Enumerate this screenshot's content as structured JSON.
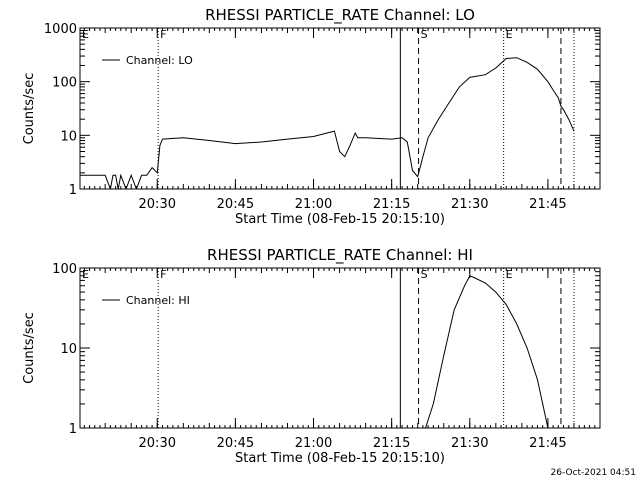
{
  "footer_timestamp": "26-Oct-2021 04:51",
  "chart_data": [
    {
      "type": "line",
      "title": "RHESSI PARTICLE_RATE Channel: LO",
      "xlabel": "Start Time (08-Feb-15 20:15:10)",
      "ylabel": "Counts/sec",
      "yscale": "log",
      "xlim": [
        "20:15:10",
        "21:55:00"
      ],
      "ylim": [
        1,
        1000
      ],
      "xticks": [
        "20:30",
        "20:45",
        "21:00",
        "21:15",
        "21:30",
        "21:45"
      ],
      "yticks": [
        "1",
        "10",
        "100",
        "1000"
      ],
      "legend": "top-left",
      "markers": [
        {
          "label": "E",
          "time": "20:15:10",
          "style": "dotted"
        },
        {
          "label": "F",
          "time": "20:30:10",
          "style": "dotted"
        },
        {
          "label": "",
          "time": "21:16:40",
          "style": "solid"
        },
        {
          "label": "S",
          "time": "21:20:10",
          "style": "dashed"
        },
        {
          "label": "E",
          "time": "21:36:30",
          "style": "dotted"
        },
        {
          "label": "",
          "time": "21:47:30",
          "style": "dashed"
        },
        {
          "label": "",
          "time": "21:50:00",
          "style": "dotted"
        }
      ],
      "series": [
        {
          "name": "Channel: LO",
          "color": "#000000",
          "x": [
            "20:15:10",
            "20:20:00",
            "20:21:00",
            "20:21:30",
            "20:22:00",
            "20:22:30",
            "20:23:00",
            "20:24:00",
            "20:25:00",
            "20:26:00",
            "20:27:00",
            "20:28:00",
            "20:29:00",
            "20:30:00",
            "20:30:30",
            "20:31:00",
            "20:35:00",
            "20:40:00",
            "20:45:00",
            "20:50:00",
            "20:55:00",
            "21:00:00",
            "21:04:00",
            "21:05:00",
            "21:06:00",
            "21:07:00",
            "21:08:00",
            "21:08:30",
            "21:10:00",
            "21:15:00",
            "21:17:00",
            "21:18:00",
            "21:19:00",
            "21:20:00",
            "21:21:00",
            "21:22:00",
            "21:24:00",
            "21:26:00",
            "21:28:00",
            "21:30:00",
            "21:33:00",
            "21:35:00",
            "21:37:00",
            "21:39:00",
            "21:41:00",
            "21:43:00",
            "21:45:00",
            "21:46:00",
            "21:47:00",
            "21:47:30",
            "21:48:00",
            "21:49:00",
            "21:50:00"
          ],
          "y": [
            1.8,
            1.8,
            1.0,
            1.8,
            1.8,
            1.0,
            1.8,
            1.0,
            1.8,
            1.0,
            1.8,
            1.8,
            2.5,
            2.0,
            6.5,
            8.5,
            9.0,
            8.0,
            7.0,
            7.5,
            8.5,
            9.5,
            12.0,
            5.0,
            4.0,
            6.5,
            11.0,
            9.0,
            9.0,
            8.5,
            9.0,
            7.5,
            2.2,
            1.7,
            4.0,
            9.0,
            20.0,
            40.0,
            80.0,
            120.0,
            135.0,
            180.0,
            270.0,
            280.0,
            230.0,
            170.0,
            100.0,
            70.0,
            50.0,
            35.0,
            30.0,
            20.0,
            12.0
          ]
        }
      ]
    },
    {
      "type": "line",
      "title": "RHESSI PARTICLE_RATE Channel: HI",
      "xlabel": "Start Time (08-Feb-15 20:15:10)",
      "ylabel": "Counts/sec",
      "yscale": "log",
      "xlim": [
        "20:15:10",
        "21:55:00"
      ],
      "ylim": [
        1,
        100
      ],
      "xticks": [
        "20:30",
        "20:45",
        "21:00",
        "21:15",
        "21:30",
        "21:45"
      ],
      "yticks": [
        "1",
        "10",
        "100"
      ],
      "legend": "top-left",
      "markers": [
        {
          "label": "E",
          "time": "20:15:10",
          "style": "dotted"
        },
        {
          "label": "F",
          "time": "20:30:10",
          "style": "dotted"
        },
        {
          "label": "",
          "time": "21:16:40",
          "style": "solid"
        },
        {
          "label": "S",
          "time": "21:20:10",
          "style": "dashed"
        },
        {
          "label": "E",
          "time": "21:36:30",
          "style": "dotted"
        },
        {
          "label": "",
          "time": "21:47:30",
          "style": "dashed"
        },
        {
          "label": "",
          "time": "21:50:00",
          "style": "dotted"
        }
      ],
      "series": [
        {
          "name": "Channel: HI",
          "color": "#000000",
          "x": [
            "21:21:30",
            "21:23:00",
            "21:25:00",
            "21:27:00",
            "21:29:00",
            "21:30:00",
            "21:31:00",
            "21:33:00",
            "21:35:00",
            "21:37:00",
            "21:39:00",
            "21:41:00",
            "21:43:00",
            "21:44:00",
            "21:45:00"
          ],
          "y": [
            1.0,
            2.0,
            8.0,
            30.0,
            60.0,
            80.0,
            75.0,
            65.0,
            50.0,
            35.0,
            20.0,
            10.0,
            4.0,
            2.0,
            1.0
          ]
        }
      ]
    }
  ]
}
